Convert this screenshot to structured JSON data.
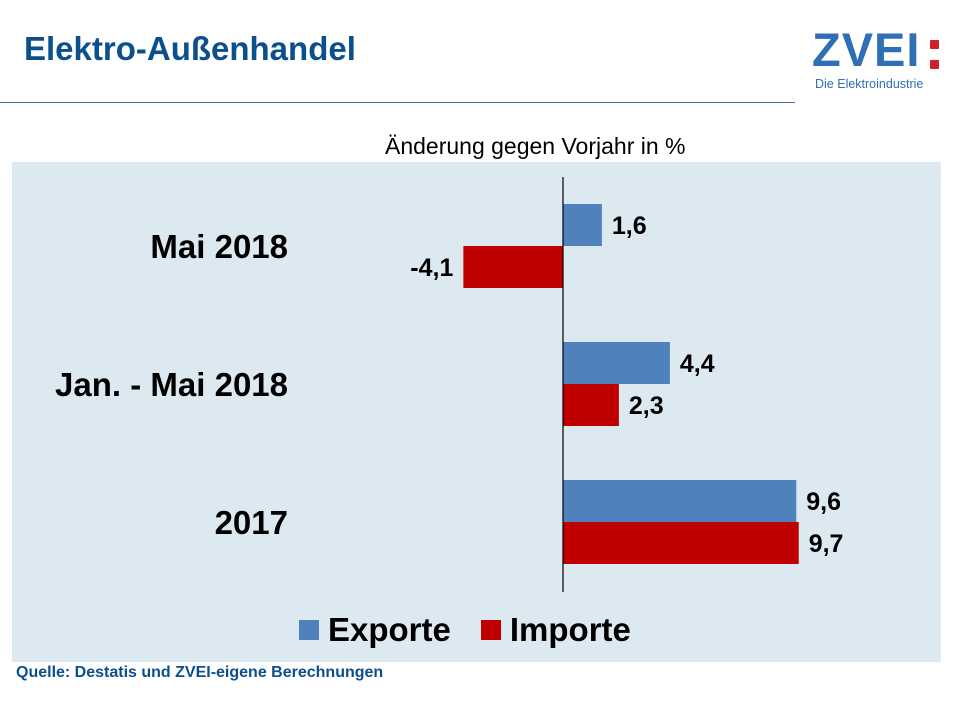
{
  "header": {
    "title": "Elektro-Außenhandel",
    "logo_text": "ZVEI",
    "logo_tagline": "Die Elektroindustrie"
  },
  "chart_data": {
    "type": "bar",
    "orientation": "horizontal",
    "title": "Änderung gegen Vorjahr in %",
    "categories": [
      "Mai 2018",
      "Jan. - Mai 2018",
      "2017"
    ],
    "series": [
      {
        "name": "Exporte",
        "values": [
          1.6,
          4.4,
          9.6
        ],
        "labels": [
          "1,6",
          "4,4",
          "9,6"
        ],
        "color": "#4f81bd"
      },
      {
        "name": "Importe",
        "values": [
          -4.1,
          2.3,
          9.7
        ],
        "labels": [
          "-4,1",
          "2,3",
          "9,7"
        ],
        "color": "#c00000"
      }
    ],
    "xlim": [
      -4.1,
      9.7
    ],
    "grid": false,
    "legend": "bottom",
    "background_color": "#dde9f1"
  },
  "footer": {
    "source": "Quelle: Destatis und ZVEI-eigene Berechnungen"
  }
}
